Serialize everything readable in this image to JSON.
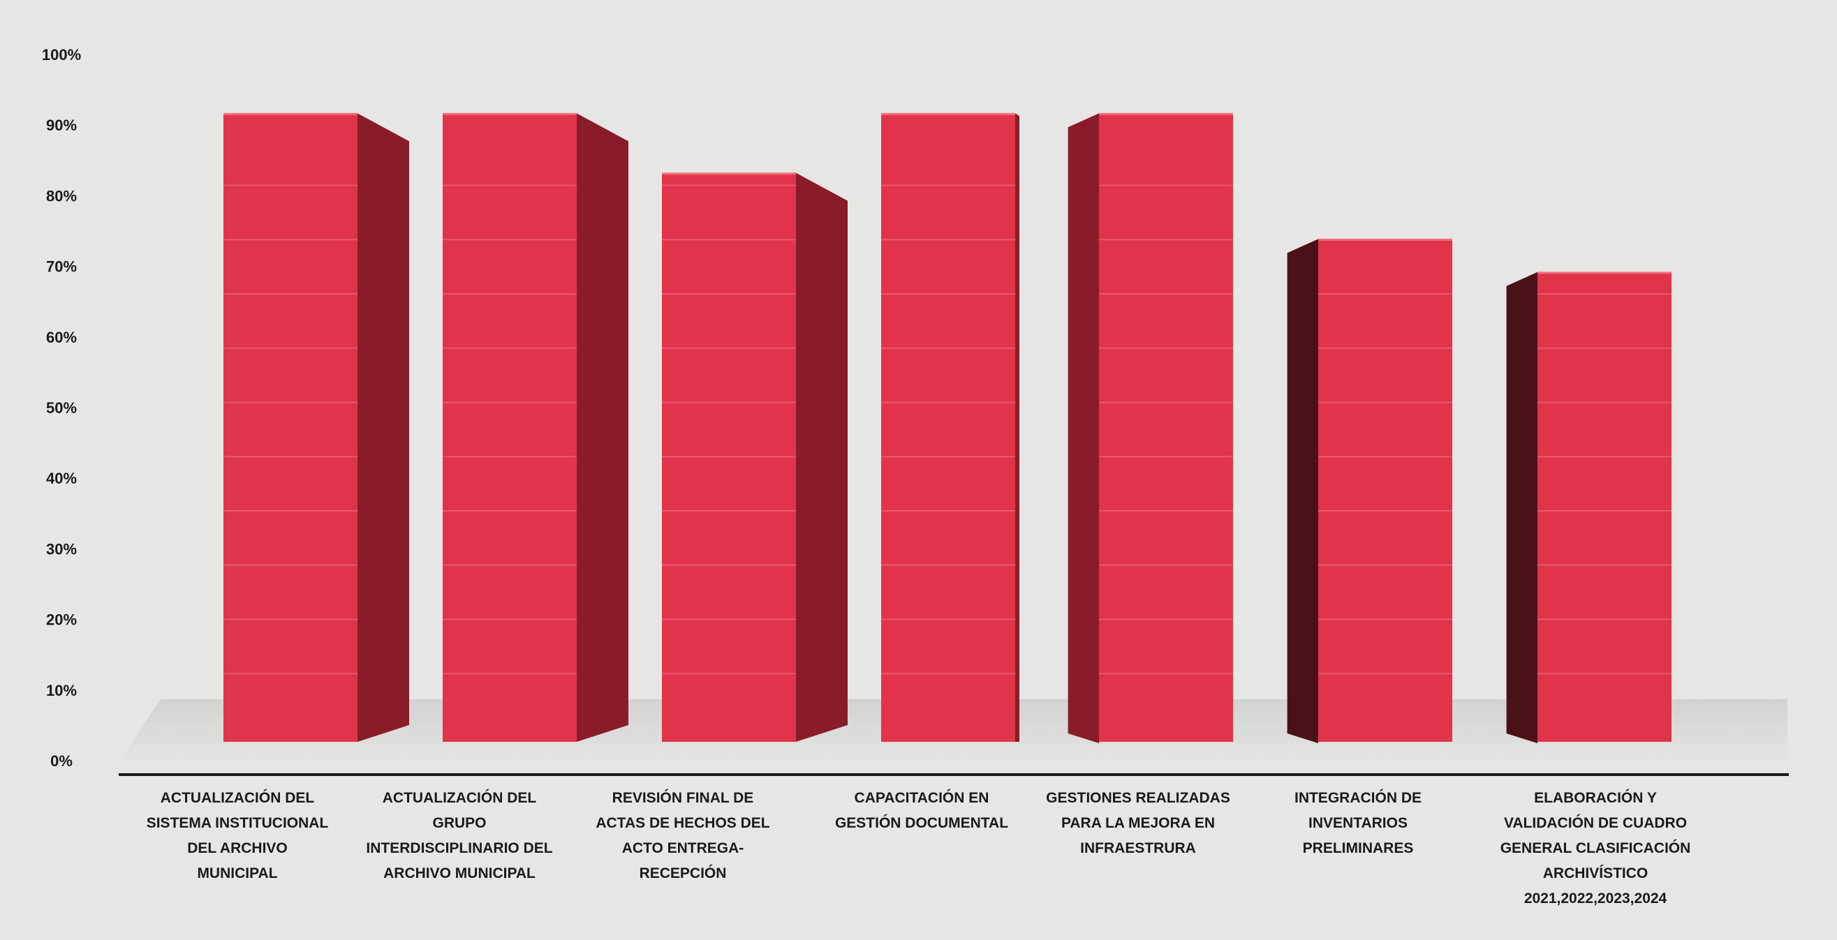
{
  "chart_data": {
    "type": "bar",
    "title": "",
    "xlabel": "",
    "ylabel": "",
    "ylim": [
      0,
      100
    ],
    "y_ticks": [
      "0%",
      "10%",
      "20%",
      "30%",
      "40%",
      "50%",
      "60%",
      "70%",
      "80%",
      "90%",
      "100%"
    ],
    "grid": true,
    "style": "3d-column",
    "colors": {
      "bar_front": "#e0344a",
      "bar_side": "#8a1c2a",
      "bar_side_dark": "#4a1218",
      "background": "#e6e6e4",
      "axis": "#1a1a1a"
    },
    "categories": [
      [
        "ACTUALIZACIÓN DEL",
        "SISTEMA INSTITUCIONAL",
        "DEL ARCHIVO",
        "MUNICIPAL"
      ],
      [
        "ACTUALIZACIÓN DEL",
        "GRUPO",
        "INTERDISCIPLINARIO DEL",
        "ARCHIVO MUNICIPAL"
      ],
      [
        "REVISIÓN FINAL DE",
        "ACTAS DE HECHOS DEL",
        "ACTO ENTREGA-",
        "RECEPCIÓN"
      ],
      [
        "CAPACITACIÓN EN",
        "GESTIÓN DOCUMENTAL"
      ],
      [
        "GESTIONES REALIZADAS",
        "PARA LA MEJORA EN",
        "INFRAESTRURA"
      ],
      [
        "INTEGRACIÓN DE",
        "INVENTARIOS",
        "PRELIMINARES"
      ],
      [
        "ELABORACIÓN Y",
        "VALIDACIÓN DE CUADRO",
        "GENERAL CLASIFICACIÓN",
        "ARCHIVÍSTICO",
        "2021,2022,2023,2024"
      ]
    ],
    "values": [
      95,
      95,
      86,
      95,
      95,
      76,
      71
    ]
  }
}
